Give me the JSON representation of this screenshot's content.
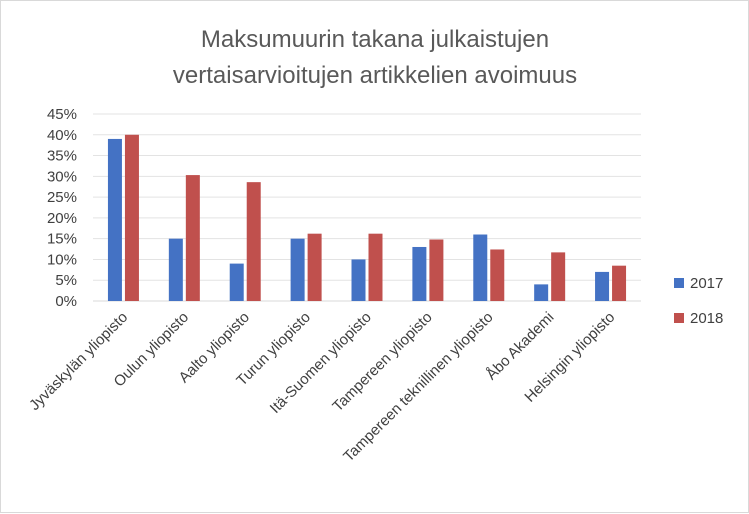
{
  "chart_data": {
    "type": "bar",
    "title_lines": [
      "Maksumuurin takana julkaistujen",
      "vertaisarvioitujen artikkelien avoimuus"
    ],
    "categories": [
      "Jyväskylän yliopisto",
      "Oulun yliopisto",
      "Aalto yliopisto",
      "Turun yliopisto",
      "Itä-Suomen yliopisto",
      "Tampereen yliopisto",
      "Tampereen teknillinen yliopisto",
      "Åbo Akademi",
      "Helsingin yliopisto"
    ],
    "series": [
      {
        "name": "2017",
        "color": "#4472c4",
        "values": [
          39,
          15,
          9,
          15,
          10,
          13,
          16,
          4,
          7
        ]
      },
      {
        "name": "2018",
        "color": "#c0504d",
        "values": [
          40,
          30.3,
          28.6,
          16.2,
          16.2,
          14.8,
          12.4,
          11.7,
          8.5
        ]
      }
    ],
    "ylim": [
      0,
      45
    ],
    "ytick_labels": [
      "0%",
      "5%",
      "10%",
      "15%",
      "20%",
      "25%",
      "30%",
      "35%",
      "40%",
      "45%"
    ],
    "grid": true,
    "legend_position": "right"
  }
}
